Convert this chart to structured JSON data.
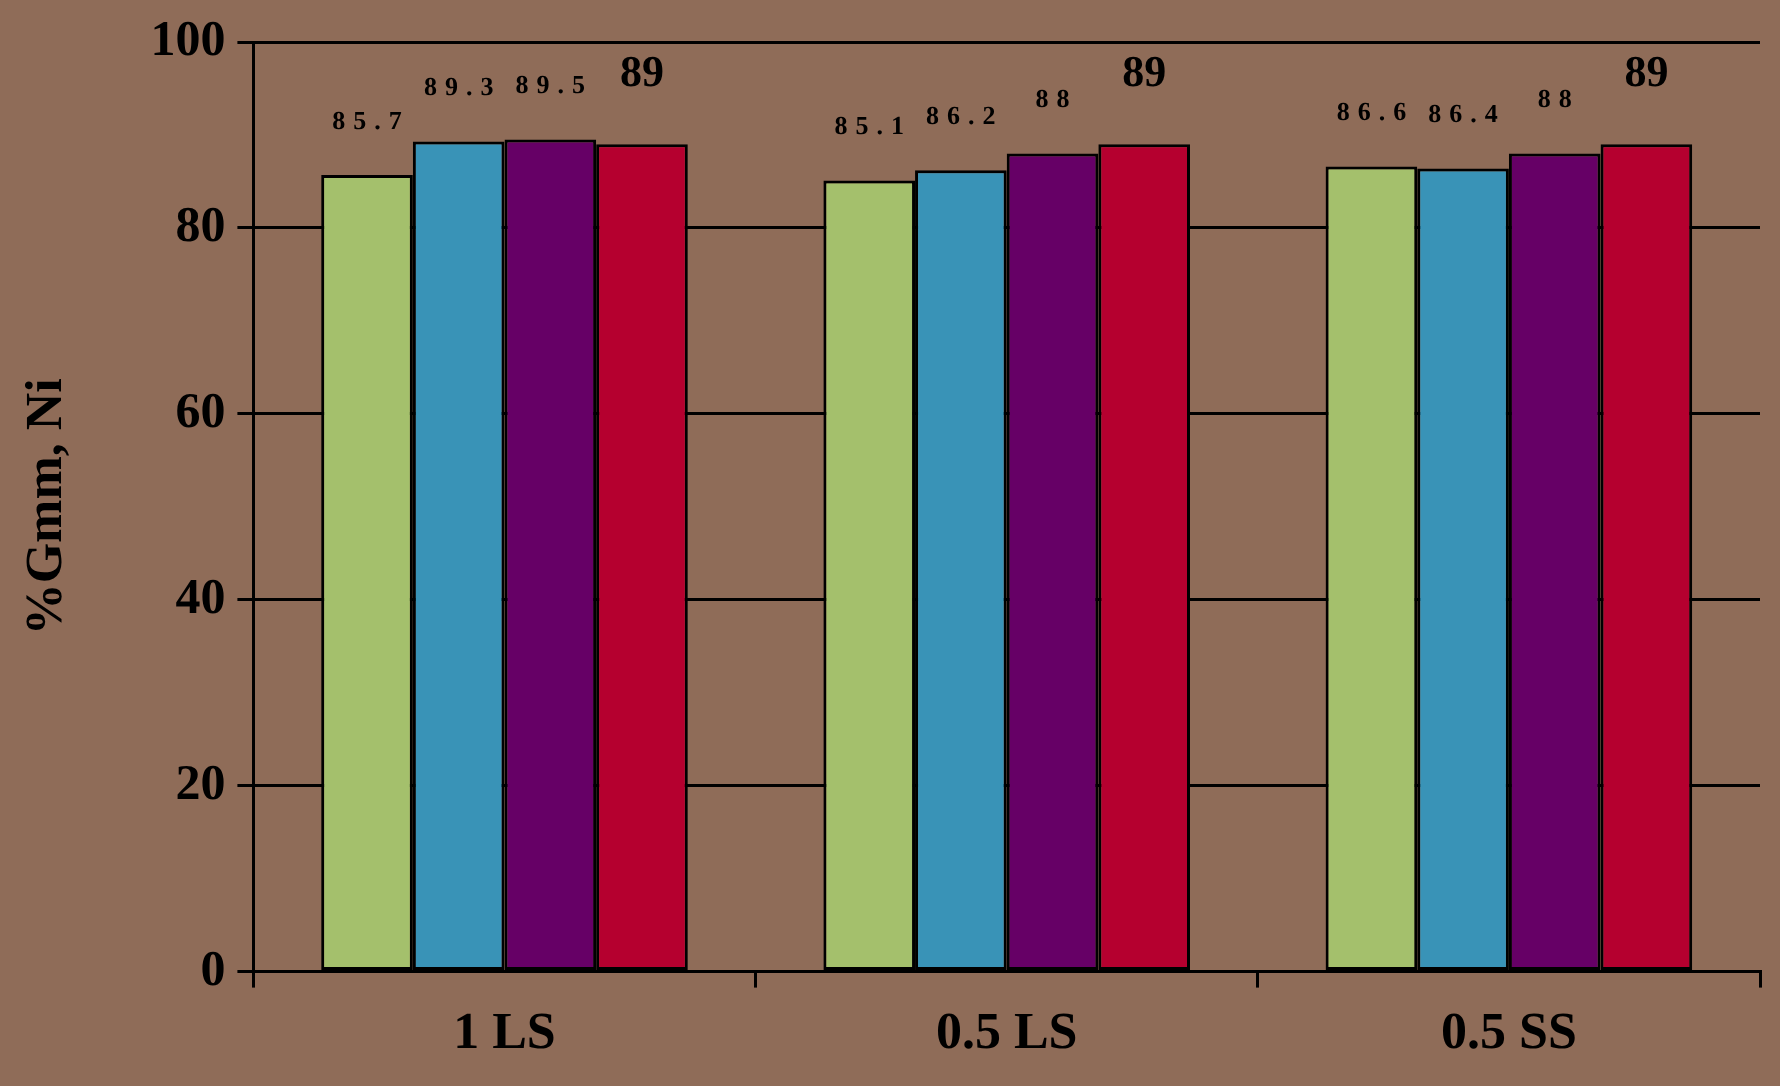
{
  "chart_data": {
    "type": "bar",
    "ylabel": "%Gmm, Ni",
    "categories": [
      "1 LS",
      "0.5 LS",
      "0.5 SS"
    ],
    "series": [
      {
        "color": "#a4c06c",
        "values": [
          85.7,
          85.1,
          86.6
        ]
      },
      {
        "color": "#3993b7",
        "values": [
          89.3,
          86.2,
          86.4
        ]
      },
      {
        "color": "#660066",
        "values": [
          89.5,
          88,
          88
        ]
      },
      {
        "color": "#b5002f",
        "values": [
          89,
          89,
          89
        ]
      }
    ],
    "ylim": [
      0,
      100
    ],
    "yticks": [
      0,
      20,
      40,
      60,
      80,
      100
    ],
    "grid": "y",
    "legend": false,
    "data_labels": true
  }
}
